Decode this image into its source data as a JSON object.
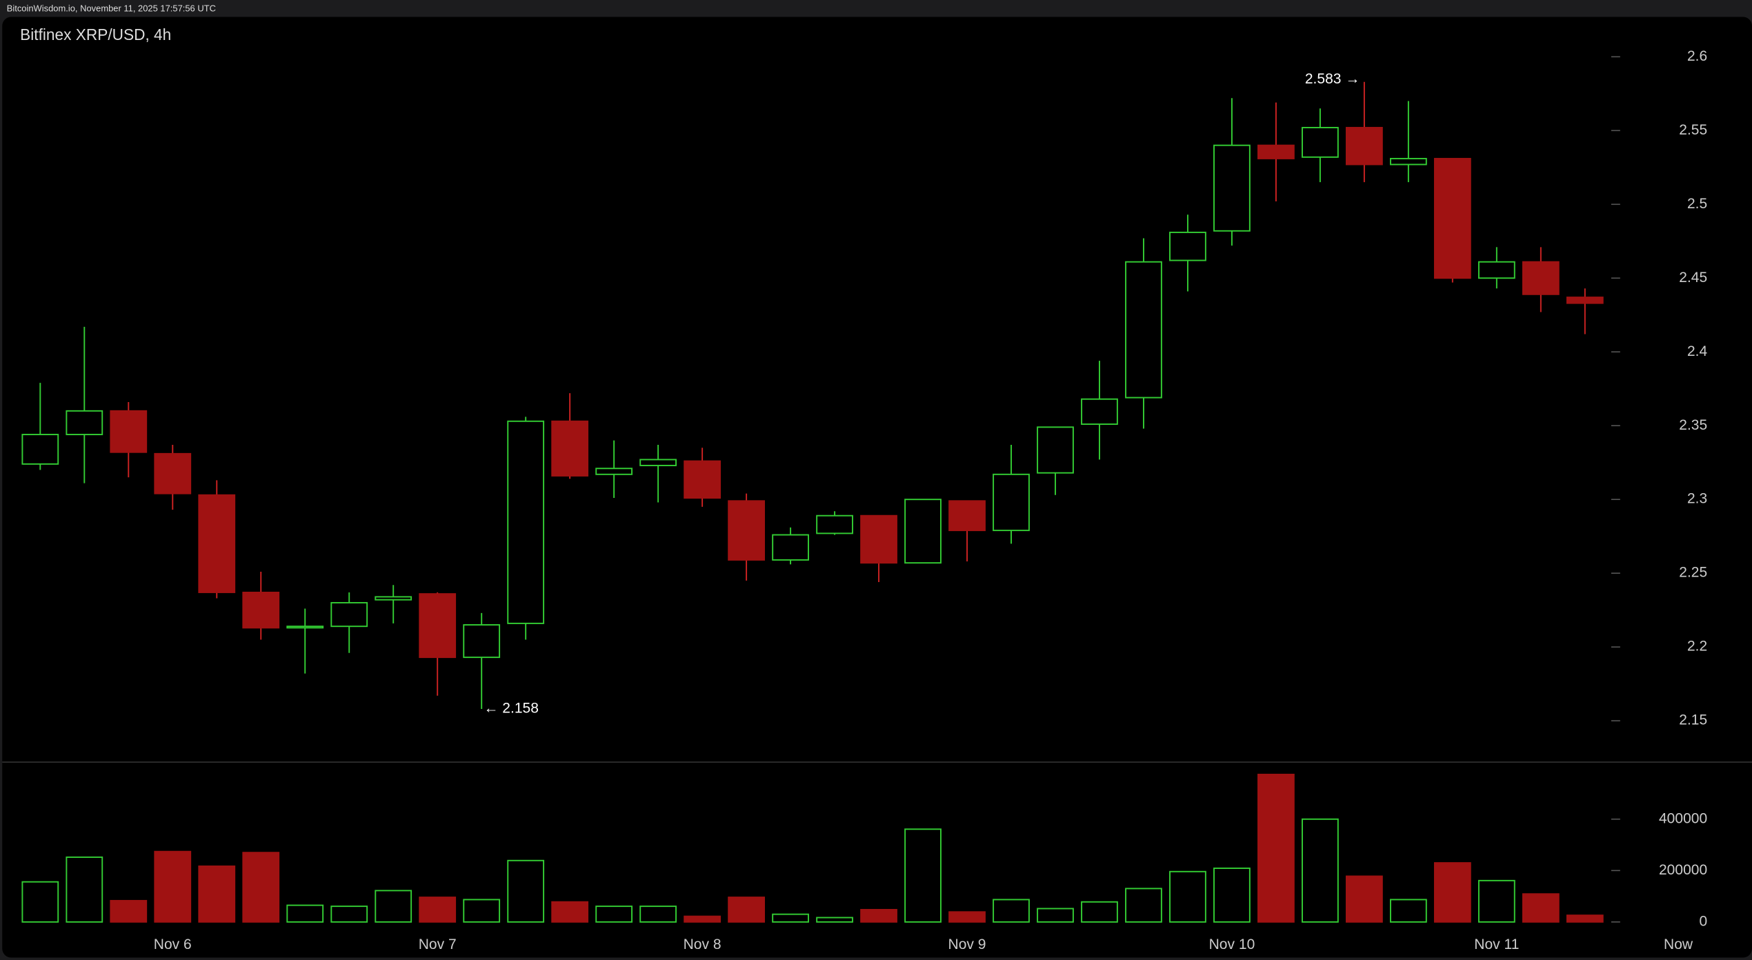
{
  "header": "BitcoinWisdom.io, November 11, 2025 17:57:56 UTC",
  "chart_data": [
    {
      "type": "candlestick",
      "title": "Bitfinex XRP/USD, 4h",
      "categories": [
        null,
        null,
        null,
        "Nov 6",
        null,
        null,
        null,
        null,
        null,
        "Nov 7",
        null,
        null,
        null,
        null,
        null,
        "Nov 8",
        null,
        null,
        null,
        null,
        null,
        "Nov 9",
        null,
        null,
        null,
        null,
        null,
        "Nov 10",
        null,
        null,
        null,
        null,
        null,
        "Nov 11",
        null,
        null
      ],
      "end_label": "Now",
      "open": [
        2.324,
        2.344,
        2.36,
        2.331,
        2.303,
        2.237,
        2.213,
        2.214,
        2.232,
        2.236,
        2.193,
        2.216,
        2.353,
        2.317,
        2.323,
        2.326,
        2.299,
        2.259,
        2.277,
        2.289,
        2.257,
        2.299,
        2.279,
        2.318,
        2.351,
        2.369,
        2.462,
        2.482,
        2.54,
        2.532,
        2.552,
        2.527,
        2.531,
        2.45,
        2.461,
        2.437
      ],
      "high": [
        2.379,
        2.417,
        2.366,
        2.337,
        2.313,
        2.251,
        2.226,
        2.237,
        2.242,
        2.237,
        2.223,
        2.356,
        2.372,
        2.34,
        2.337,
        2.335,
        2.304,
        2.281,
        2.292,
        2.289,
        2.3,
        2.299,
        2.337,
        2.349,
        2.394,
        2.477,
        2.493,
        2.572,
        2.569,
        2.565,
        2.583,
        2.57,
        2.531,
        2.471,
        2.471,
        2.443
      ],
      "low": [
        2.32,
        2.311,
        2.315,
        2.293,
        2.233,
        2.205,
        2.182,
        2.196,
        2.216,
        2.167,
        2.158,
        2.205,
        2.314,
        2.301,
        2.298,
        2.295,
        2.245,
        2.256,
        2.276,
        2.244,
        2.257,
        2.258,
        2.27,
        2.303,
        2.327,
        2.348,
        2.441,
        2.472,
        2.502,
        2.515,
        2.515,
        2.515,
        2.447,
        2.443,
        2.427,
        2.412
      ],
      "close": [
        2.344,
        2.36,
        2.332,
        2.304,
        2.237,
        2.213,
        2.214,
        2.23,
        2.234,
        2.193,
        2.215,
        2.353,
        2.316,
        2.321,
        2.327,
        2.301,
        2.259,
        2.276,
        2.289,
        2.257,
        2.3,
        2.279,
        2.317,
        2.349,
        2.368,
        2.461,
        2.481,
        2.54,
        2.531,
        2.552,
        2.527,
        2.531,
        2.45,
        2.461,
        2.439,
        2.433
      ],
      "up_color": "#33cc33",
      "down_color": "#a01212",
      "ylim": [
        2.122,
        2.627
      ],
      "yticks": [
        2.15,
        2.2,
        2.25,
        2.3,
        2.35,
        2.4,
        2.45,
        2.5,
        2.55,
        2.6
      ],
      "annotations": [
        {
          "label": "2.583 →",
          "value": 2.583,
          "of": "high"
        },
        {
          "label": "← 2.158",
          "value": 2.158,
          "of": "low"
        }
      ]
    },
    {
      "type": "bar",
      "name": "volume",
      "values": [
        156000,
        252000,
        83000,
        274000,
        217000,
        270000,
        65000,
        61000,
        122000,
        96000,
        87000,
        239000,
        78000,
        61000,
        61000,
        22000,
        96000,
        30000,
        17000,
        48000,
        361000,
        39000,
        87000,
        52000,
        78000,
        130000,
        196000,
        209000,
        574000,
        400000,
        178000,
        87000,
        230000,
        161000,
        109000,
        26000
      ],
      "ylim": [
        -43000,
        622000
      ],
      "yticks": [
        0,
        200000,
        400000
      ]
    }
  ]
}
